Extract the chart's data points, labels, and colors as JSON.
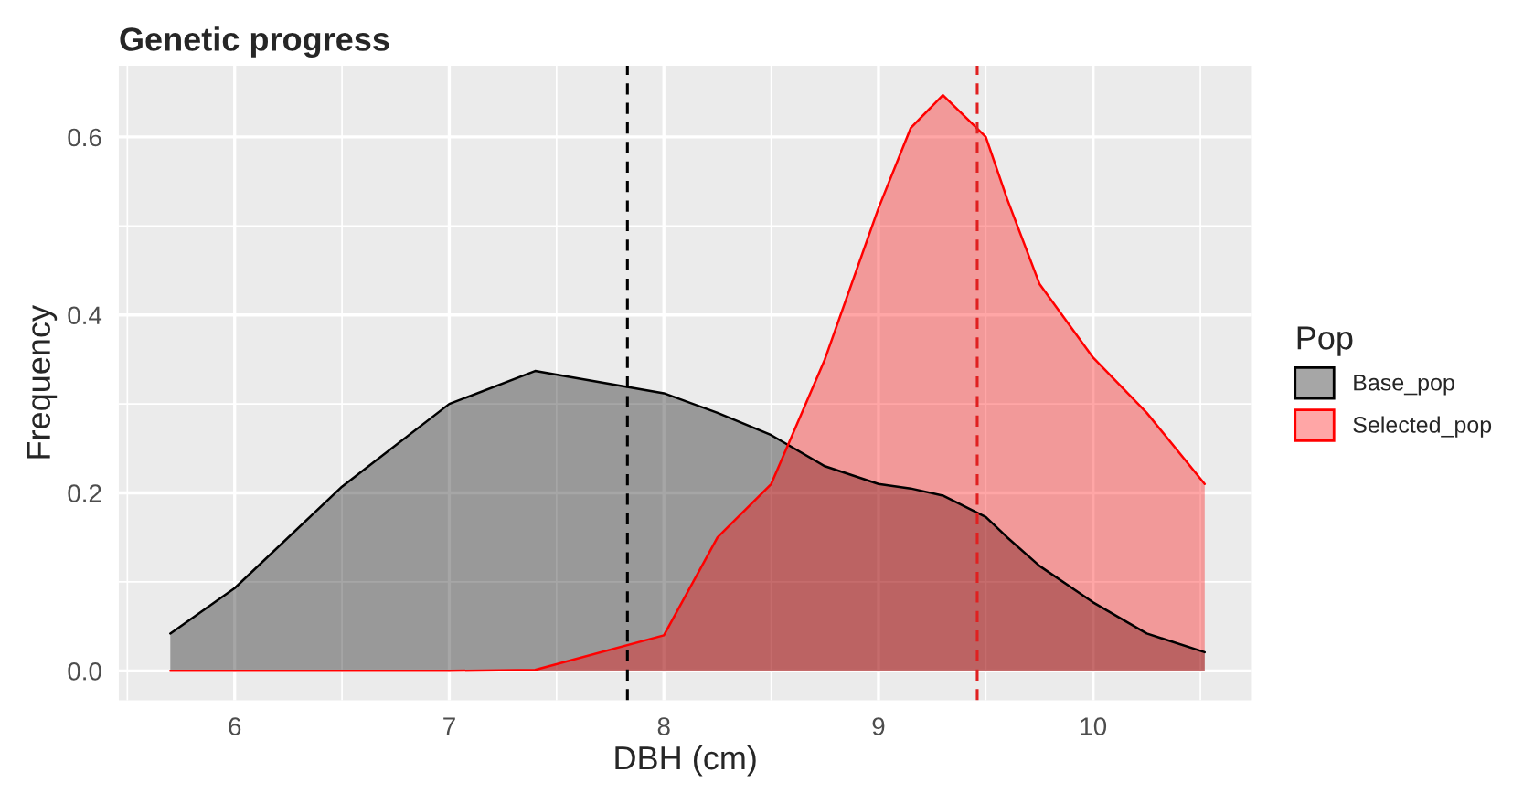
{
  "chart_data": {
    "type": "area",
    "title": "Genetic progress",
    "xlabel": "DBH (cm)",
    "ylabel": "Frequency",
    "legend_title": "Pop",
    "x": [
      5.7,
      6.0,
      6.5,
      7.0,
      7.4,
      8.0,
      8.25,
      8.5,
      8.75,
      9.0,
      9.15,
      9.3,
      9.5,
      9.6,
      9.75,
      10.0,
      10.25,
      10.52
    ],
    "series": [
      {
        "name": "Base_pop",
        "color": "#000000",
        "values": [
          0.042,
          0.093,
          0.207,
          0.3,
          0.337,
          0.312,
          0.29,
          0.265,
          0.23,
          0.21,
          0.205,
          0.197,
          0.173,
          0.15,
          0.118,
          0.077,
          0.042,
          0.021
        ]
      },
      {
        "name": "Selected_pop",
        "color": "#ff0000",
        "values": [
          0,
          0,
          0,
          0,
          0.001,
          0.04,
          0.15,
          0.21,
          0.35,
          0.52,
          0.61,
          0.647,
          0.6,
          0.53,
          0.435,
          0.352,
          0.29,
          0.21
        ]
      }
    ],
    "xlim": [
      5.46,
      10.74
    ],
    "ylim": [
      -0.033,
      0.68
    ],
    "xticks": [
      6,
      7,
      8,
      9,
      10
    ],
    "yticks": [
      {
        "value": 0,
        "label": "0.0"
      },
      0.2,
      0.4,
      0.6
    ],
    "ref_lines": [
      {
        "axis": "x",
        "value": 7.83,
        "color": "#000000",
        "line_style": "dashed"
      },
      {
        "axis": "x",
        "value": 9.46,
        "color": "#e02020",
        "line_style": "dashed"
      }
    ],
    "grid": true,
    "legend": "right"
  }
}
